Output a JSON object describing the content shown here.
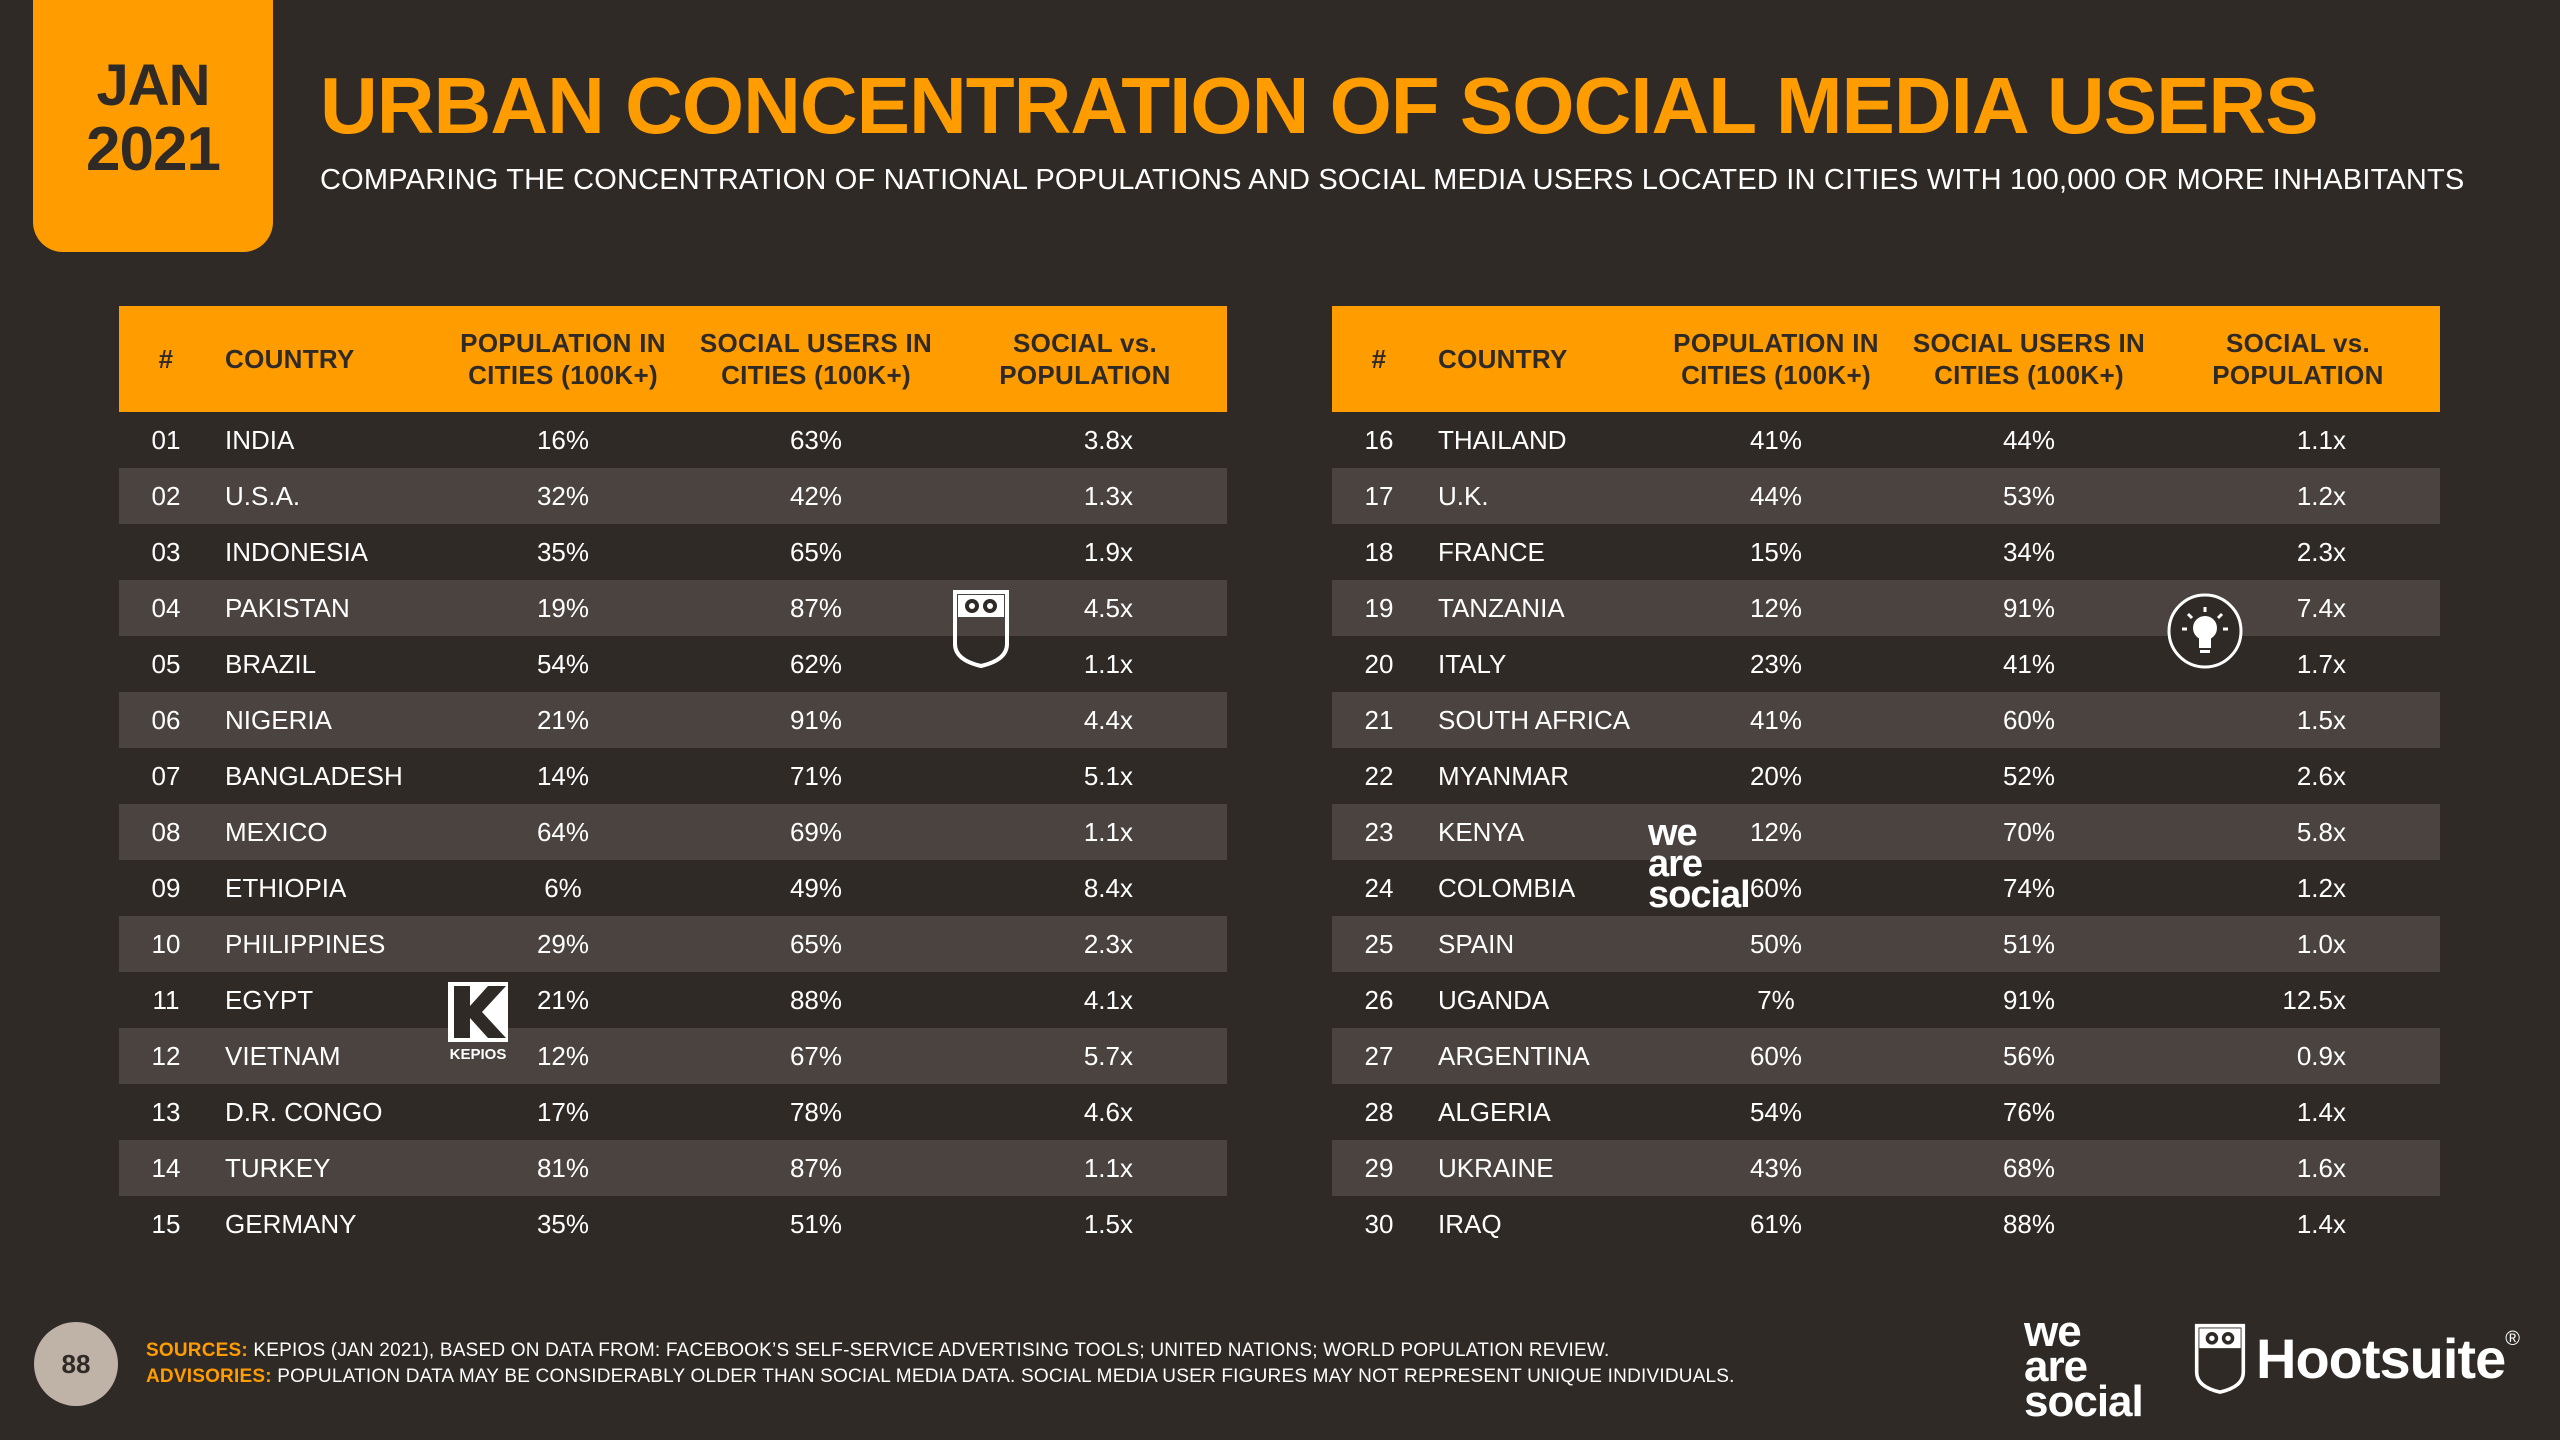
{
  "date": {
    "month": "JAN",
    "year": "2021"
  },
  "title": "URBAN CONCENTRATION OF SOCIAL MEDIA USERS",
  "subtitle": "COMPARING THE CONCENTRATION OF NATIONAL POPULATIONS AND SOCIAL MEDIA USERS LOCATED IN CITIES WITH 100,000 OR MORE INHABITANTS",
  "headers": {
    "num": "#",
    "country": "COUNTRY",
    "pop_l1": "POPULATION IN",
    "pop_l2": "CITIES (100K+)",
    "soc_l1": "SOCIAL USERS IN",
    "soc_l2": "CITIES (100K+)",
    "ratio_l1": "SOCIAL vs.",
    "ratio_l2": "POPULATION"
  },
  "left_rows": [
    {
      "num": "01",
      "country": "INDIA",
      "pop": "16%",
      "soc": "63%",
      "ratio": "3.8x"
    },
    {
      "num": "02",
      "country": "U.S.A.",
      "pop": "32%",
      "soc": "42%",
      "ratio": "1.3x"
    },
    {
      "num": "03",
      "country": "INDONESIA",
      "pop": "35%",
      "soc": "65%",
      "ratio": "1.9x"
    },
    {
      "num": "04",
      "country": "PAKISTAN",
      "pop": "19%",
      "soc": "87%",
      "ratio": "4.5x"
    },
    {
      "num": "05",
      "country": "BRAZIL",
      "pop": "54%",
      "soc": "62%",
      "ratio": "1.1x"
    },
    {
      "num": "06",
      "country": "NIGERIA",
      "pop": "21%",
      "soc": "91%",
      "ratio": "4.4x"
    },
    {
      "num": "07",
      "country": "BANGLADESH",
      "pop": "14%",
      "soc": "71%",
      "ratio": "5.1x"
    },
    {
      "num": "08",
      "country": "MEXICO",
      "pop": "64%",
      "soc": "69%",
      "ratio": "1.1x"
    },
    {
      "num": "09",
      "country": "ETHIOPIA",
      "pop": "6%",
      "soc": "49%",
      "ratio": "8.4x"
    },
    {
      "num": "10",
      "country": "PHILIPPINES",
      "pop": "29%",
      "soc": "65%",
      "ratio": "2.3x"
    },
    {
      "num": "11",
      "country": "EGYPT",
      "pop": "21%",
      "soc": "88%",
      "ratio": "4.1x"
    },
    {
      "num": "12",
      "country": "VIETNAM",
      "pop": "12%",
      "soc": "67%",
      "ratio": "5.7x"
    },
    {
      "num": "13",
      "country": "D.R. CONGO",
      "pop": "17%",
      "soc": "78%",
      "ratio": "4.6x"
    },
    {
      "num": "14",
      "country": "TURKEY",
      "pop": "81%",
      "soc": "87%",
      "ratio": "1.1x"
    },
    {
      "num": "15",
      "country": "GERMANY",
      "pop": "35%",
      "soc": "51%",
      "ratio": "1.5x"
    }
  ],
  "right_rows": [
    {
      "num": "16",
      "country": "THAILAND",
      "pop": "41%",
      "soc": "44%",
      "ratio": "1.1x"
    },
    {
      "num": "17",
      "country": "U.K.",
      "pop": "44%",
      "soc": "53%",
      "ratio": "1.2x"
    },
    {
      "num": "18",
      "country": "FRANCE",
      "pop": "15%",
      "soc": "34%",
      "ratio": "2.3x"
    },
    {
      "num": "19",
      "country": "TANZANIA",
      "pop": "12%",
      "soc": "91%",
      "ratio": "7.4x"
    },
    {
      "num": "20",
      "country": "ITALY",
      "pop": "23%",
      "soc": "41%",
      "ratio": "1.7x"
    },
    {
      "num": "21",
      "country": "SOUTH AFRICA",
      "pop": "41%",
      "soc": "60%",
      "ratio": "1.5x"
    },
    {
      "num": "22",
      "country": "MYANMAR",
      "pop": "20%",
      "soc": "52%",
      "ratio": "2.6x"
    },
    {
      "num": "23",
      "country": "KENYA",
      "pop": "12%",
      "soc": "70%",
      "ratio": "5.8x"
    },
    {
      "num": "24",
      "country": "COLOMBIA",
      "pop": "60%",
      "soc": "74%",
      "ratio": "1.2x"
    },
    {
      "num": "25",
      "country": "SPAIN",
      "pop": "50%",
      "soc": "51%",
      "ratio": "1.0x"
    },
    {
      "num": "26",
      "country": "UGANDA",
      "pop": "7%",
      "soc": "91%",
      "ratio": "12.5x"
    },
    {
      "num": "27",
      "country": "ARGENTINA",
      "pop": "60%",
      "soc": "56%",
      "ratio": "0.9x"
    },
    {
      "num": "28",
      "country": "ALGERIA",
      "pop": "54%",
      "soc": "76%",
      "ratio": "1.4x"
    },
    {
      "num": "29",
      "country": "UKRAINE",
      "pop": "43%",
      "soc": "68%",
      "ratio": "1.6x"
    },
    {
      "num": "30",
      "country": "IRAQ",
      "pop": "61%",
      "soc": "88%",
      "ratio": "1.4x"
    }
  ],
  "kepios_label": "KEPIOS",
  "we_are_social": {
    "l1": "we",
    "l2": "are",
    "l3": "social"
  },
  "page_number": "88",
  "sources_label": "SOURCES:",
  "sources_text": " KEPIOS (JAN 2021), BASED ON DATA FROM: FACEBOOK’S SELF-SERVICE ADVERTISING TOOLS; UNITED NATIONS; WORLD POPULATION REVIEW.",
  "advisories_label": "ADVISORIES:",
  "advisories_text": " POPULATION DATA MAY BE CONSIDERABLY OLDER THAN SOCIAL MEDIA DATA. SOCIAL MEDIA USER FIGURES MAY NOT REPRESENT UNIQUE INDIVIDUALS.",
  "hootsuite": "Hootsuite",
  "hootsuite_mark": "®",
  "colors": {
    "accent": "#ff9d00",
    "background": "#2f2a26",
    "stripe": "#4a4340"
  }
}
